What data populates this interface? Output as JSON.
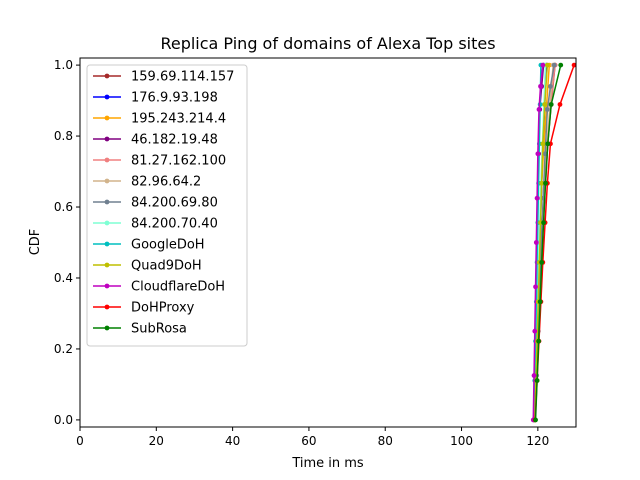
{
  "chart_data": {
    "type": "line",
    "title": "Replica Ping of domains of Alexa Top sites",
    "xlabel": "Time in ms",
    "ylabel": "CDF",
    "xlim": [
      0,
      130
    ],
    "ylim": [
      -0.02,
      1.02
    ],
    "xticks": [
      0,
      20,
      40,
      60,
      80,
      100,
      120
    ],
    "yticks": [
      0.0,
      0.2,
      0.4,
      0.6,
      0.8,
      1.0
    ],
    "grid": false,
    "legend_position": "upper-left",
    "marker": "circle",
    "series": [
      {
        "name": "159.69.114.157",
        "color": "#a52a2a",
        "x": [
          119.2,
          119.6,
          120.1,
          120.5,
          121.0,
          121.4,
          122.0,
          122.6,
          123.5,
          124.5
        ],
        "y": [
          0.0,
          0.111,
          0.222,
          0.333,
          0.444,
          0.556,
          0.667,
          0.778,
          0.889,
          1.0
        ]
      },
      {
        "name": "176.9.93.198",
        "color": "#0000ff",
        "x": [
          119.1,
          119.5,
          119.8,
          120.1,
          120.4,
          120.7,
          121.0,
          121.4,
          121.8,
          122.3
        ],
        "y": [
          0.0,
          0.111,
          0.222,
          0.333,
          0.444,
          0.556,
          0.667,
          0.778,
          0.889,
          1.0
        ]
      },
      {
        "name": "195.243.214.4",
        "color": "#ffa500",
        "x": [
          119.0,
          119.4,
          119.8,
          120.0,
          120.3,
          120.6,
          121.0,
          121.6,
          122.3,
          123.0
        ],
        "y": [
          0.0,
          0.111,
          0.222,
          0.333,
          0.444,
          0.556,
          0.667,
          0.778,
          0.889,
          1.0
        ]
      },
      {
        "name": "46.182.19.48",
        "color": "#800080",
        "x": [
          118.9,
          119.1,
          119.3,
          119.5,
          119.7,
          119.9,
          120.2,
          120.5,
          121.0,
          121.5
        ],
        "y": [
          0.0,
          0.125,
          0.25,
          0.375,
          0.5,
          0.625,
          0.75,
          0.875,
          0.94,
          1.0
        ]
      },
      {
        "name": "81.27.162.100",
        "color": "#f08080",
        "x": [
          119.0,
          119.3,
          119.7,
          120.1,
          120.6,
          121.2,
          121.9,
          122.6,
          123.4,
          124.5
        ],
        "y": [
          0.0,
          0.111,
          0.222,
          0.333,
          0.444,
          0.556,
          0.667,
          0.778,
          0.889,
          1.0
        ]
      },
      {
        "name": "82.96.64.2",
        "color": "#d2b48c",
        "x": [
          119.2,
          119.6,
          120.0,
          120.4,
          120.8,
          121.3,
          121.8,
          122.4,
          123.2,
          124.0
        ],
        "y": [
          0.0,
          0.111,
          0.222,
          0.333,
          0.444,
          0.556,
          0.667,
          0.778,
          0.889,
          1.0
        ]
      },
      {
        "name": "84.200.69.80",
        "color": "#708090",
        "x": [
          119.3,
          119.7,
          120.1,
          120.5,
          120.9,
          121.4,
          121.9,
          122.5,
          123.3,
          124.3
        ],
        "y": [
          0.0,
          0.125,
          0.25,
          0.375,
          0.5,
          0.625,
          0.75,
          0.875,
          0.94,
          1.0
        ]
      },
      {
        "name": "84.200.70.40",
        "color": "#7fffd4",
        "x": [
          119.0,
          119.3,
          119.6,
          119.9,
          120.2,
          120.5,
          120.8,
          121.2,
          121.6,
          122.0
        ],
        "y": [
          0.0,
          0.111,
          0.222,
          0.333,
          0.444,
          0.556,
          0.667,
          0.778,
          0.889,
          1.0
        ]
      },
      {
        "name": "GoogleDoH",
        "color": "#00bfbf",
        "x": [
          119.0,
          119.2,
          119.4,
          119.6,
          119.8,
          120.0,
          120.2,
          120.4,
          120.6,
          120.8
        ],
        "y": [
          0.0,
          0.111,
          0.222,
          0.333,
          0.444,
          0.556,
          0.667,
          0.778,
          0.889,
          1.0
        ]
      },
      {
        "name": "Quad9DoH",
        "color": "#bfbf00",
        "x": [
          119.2,
          119.5,
          119.8,
          120.1,
          120.4,
          120.7,
          121.0,
          121.3,
          121.8,
          122.5
        ],
        "y": [
          0.0,
          0.111,
          0.222,
          0.333,
          0.444,
          0.556,
          0.667,
          0.778,
          0.889,
          1.0
        ]
      },
      {
        "name": "CloudflareDoH",
        "color": "#bf00bf",
        "x": [
          118.8,
          119.0,
          119.2,
          119.4,
          119.6,
          119.8,
          120.0,
          120.3,
          120.7,
          121.3
        ],
        "y": [
          0.0,
          0.125,
          0.25,
          0.375,
          0.5,
          0.625,
          0.75,
          0.875,
          0.94,
          1.0
        ]
      },
      {
        "name": "DoHProxy",
        "color": "#ff0000",
        "x": [
          119.3,
          119.8,
          120.3,
          120.8,
          121.3,
          121.9,
          122.5,
          123.3,
          125.8,
          129.5
        ],
        "y": [
          0.0,
          0.111,
          0.222,
          0.333,
          0.444,
          0.556,
          0.667,
          0.778,
          0.889,
          1.0
        ]
      },
      {
        "name": "SubRosa",
        "color": "#008000",
        "x": [
          119.4,
          119.8,
          120.2,
          120.6,
          121.0,
          121.5,
          122.0,
          122.6,
          123.5,
          126.0
        ],
        "y": [
          0.0,
          0.111,
          0.222,
          0.333,
          0.444,
          0.556,
          0.667,
          0.778,
          0.889,
          1.0
        ]
      }
    ]
  }
}
